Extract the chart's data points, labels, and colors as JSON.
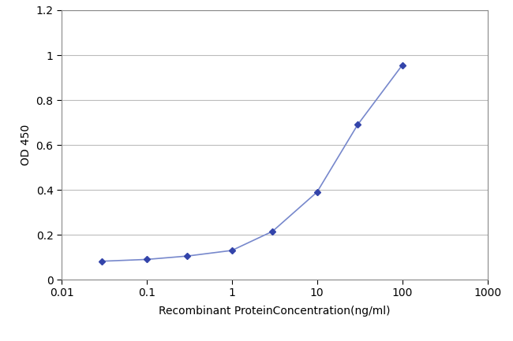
{
  "x_values": [
    0.03,
    0.1,
    0.3,
    1.0,
    3.0,
    10.0,
    30.0,
    100.0
  ],
  "y_values": [
    0.082,
    0.09,
    0.105,
    0.13,
    0.215,
    0.39,
    0.69,
    0.955
  ],
  "line_color": "#7788cc",
  "marker_color": "#3344aa",
  "marker_style": "D",
  "marker_size": 4,
  "line_width": 1.2,
  "xlabel": "Recombinant ProteinConcentration(ng/ml)",
  "ylabel": "OD 450",
  "xlim_log": [
    0.01,
    1000
  ],
  "ylim": [
    0,
    1.2
  ],
  "yticks": [
    0,
    0.2,
    0.4,
    0.6,
    0.8,
    1.0,
    1.2
  ],
  "xtick_positions": [
    0.01,
    0.1,
    1,
    10,
    100,
    1000
  ],
  "xtick_labels": [
    "0.01",
    "0.1",
    "1",
    "10",
    "100",
    "1000"
  ],
  "background_color": "#ffffff",
  "grid_color": "#bbbbbb",
  "xlabel_fontsize": 10,
  "ylabel_fontsize": 10,
  "tick_fontsize": 10,
  "figure_width": 6.5,
  "figure_height": 4.33,
  "dpi": 100
}
